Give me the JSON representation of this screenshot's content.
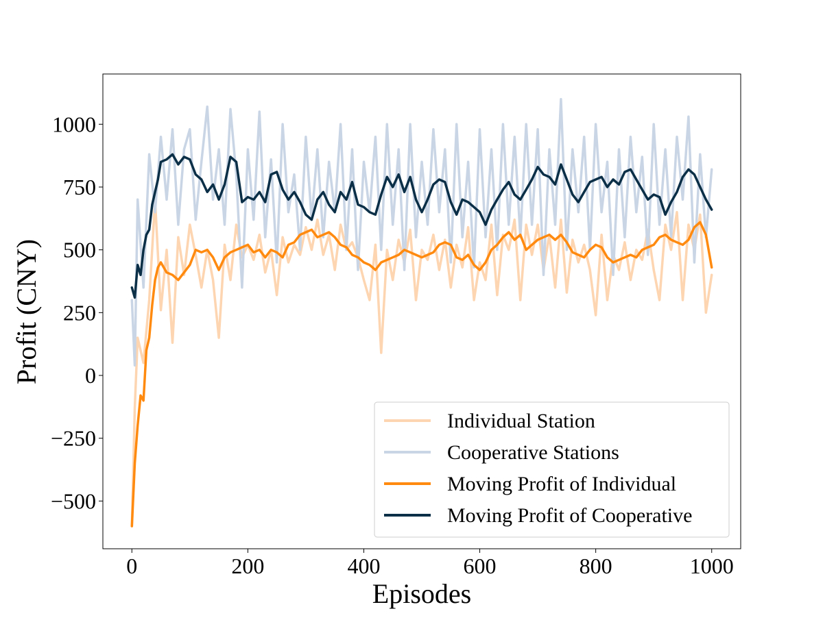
{
  "chart_data": {
    "type": "line",
    "title": "",
    "xlabel": "Episodes",
    "ylabel": "Profit (CNY)",
    "xlim": [
      -50,
      1050
    ],
    "ylim": [
      -690,
      1200
    ],
    "x_ticks": [
      0,
      200,
      400,
      600,
      800,
      1000
    ],
    "y_ticks": [
      -500,
      -250,
      0,
      250,
      500,
      750,
      1000
    ],
    "x_tick_labels": [
      "0",
      "200",
      "400",
      "600",
      "800",
      "1000"
    ],
    "y_tick_labels": [
      "−500",
      "−250",
      "0",
      "250",
      "500",
      "750",
      "1000"
    ],
    "grid": false,
    "legend_position": "bottom-right",
    "series": [
      {
        "name": "Individual Station",
        "color": "#fdd5b1",
        "x": [
          0,
          5,
          10,
          20,
          30,
          40,
          50,
          60,
          70,
          80,
          90,
          100,
          110,
          120,
          130,
          140,
          150,
          160,
          170,
          180,
          190,
          200,
          210,
          220,
          230,
          240,
          250,
          260,
          270,
          280,
          290,
          300,
          310,
          320,
          330,
          340,
          350,
          360,
          370,
          380,
          390,
          400,
          410,
          420,
          430,
          440,
          450,
          460,
          470,
          480,
          490,
          500,
          510,
          520,
          530,
          540,
          550,
          560,
          570,
          580,
          590,
          600,
          610,
          620,
          630,
          640,
          650,
          660,
          670,
          680,
          690,
          700,
          710,
          720,
          730,
          740,
          750,
          760,
          770,
          780,
          790,
          800,
          810,
          820,
          830,
          840,
          850,
          860,
          870,
          880,
          890,
          900,
          910,
          920,
          930,
          940,
          950,
          960,
          970,
          980,
          990,
          1000
        ],
        "values": [
          -600,
          -130,
          150,
          50,
          300,
          700,
          260,
          500,
          130,
          550,
          400,
          600,
          480,
          350,
          500,
          380,
          150,
          520,
          380,
          600,
          470,
          520,
          460,
          560,
          410,
          500,
          320,
          550,
          450,
          520,
          480,
          590,
          500,
          620,
          480,
          560,
          420,
          600,
          500,
          530,
          470,
          380,
          300,
          520,
          90,
          500,
          380,
          540,
          450,
          580,
          300,
          500,
          460,
          560,
          420,
          540,
          350,
          520,
          430,
          590,
          300,
          450,
          380,
          600,
          320,
          560,
          500,
          620,
          300,
          600,
          480,
          600,
          420,
          560,
          350,
          620,
          330,
          540,
          450,
          520,
          420,
          240,
          560,
          300,
          480,
          420,
          530,
          380,
          500,
          460,
          580,
          420,
          300,
          600,
          500,
          650,
          300,
          600,
          500,
          640,
          250,
          400
        ]
      },
      {
        "name": "Cooperative Stations",
        "color": "#c9d5e5",
        "x": [
          0,
          5,
          10,
          20,
          30,
          40,
          50,
          60,
          70,
          80,
          90,
          100,
          110,
          120,
          130,
          140,
          150,
          160,
          170,
          180,
          190,
          200,
          210,
          220,
          230,
          240,
          250,
          260,
          270,
          280,
          290,
          300,
          310,
          320,
          330,
          340,
          350,
          360,
          370,
          380,
          390,
          400,
          410,
          420,
          430,
          440,
          450,
          460,
          470,
          480,
          490,
          500,
          510,
          520,
          530,
          540,
          550,
          560,
          570,
          580,
          590,
          600,
          610,
          620,
          630,
          640,
          650,
          660,
          670,
          680,
          690,
          700,
          710,
          720,
          730,
          740,
          750,
          760,
          770,
          780,
          790,
          800,
          810,
          820,
          830,
          840,
          850,
          860,
          870,
          880,
          890,
          900,
          910,
          920,
          930,
          940,
          950,
          960,
          970,
          980,
          990,
          1000
        ],
        "values": [
          300,
          40,
          700,
          350,
          880,
          650,
          950,
          700,
          980,
          600,
          900,
          980,
          620,
          850,
          1070,
          700,
          900,
          600,
          1060,
          800,
          350,
          900,
          620,
          1050,
          550,
          860,
          450,
          1000,
          650,
          800,
          500,
          950,
          620,
          900,
          550,
          850,
          650,
          1000,
          500,
          900,
          420,
          850,
          650,
          950,
          500,
          1000,
          600,
          900,
          420,
          1000,
          550,
          850,
          600,
          980,
          650,
          900,
          450,
          1000,
          550,
          850,
          430,
          980,
          550,
          900,
          500,
          1000,
          600,
          950,
          550,
          1000,
          600,
          980,
          400,
          900,
          600,
          1100,
          500,
          900,
          650,
          950,
          500,
          1000,
          650,
          850,
          400,
          900,
          550,
          950,
          650,
          870,
          480,
          1000,
          600,
          900,
          550,
          950,
          700,
          1030,
          450,
          880,
          550,
          820
        ]
      },
      {
        "name": "Moving Profit of Individual",
        "color": "#ff8a0f",
        "x": [
          0,
          5,
          10,
          15,
          20,
          25,
          30,
          35,
          40,
          45,
          50,
          60,
          70,
          80,
          90,
          100,
          110,
          120,
          130,
          140,
          150,
          160,
          170,
          180,
          190,
          200,
          210,
          220,
          230,
          240,
          250,
          260,
          270,
          280,
          290,
          300,
          310,
          320,
          330,
          340,
          350,
          360,
          370,
          380,
          390,
          400,
          410,
          420,
          430,
          440,
          450,
          460,
          470,
          480,
          490,
          500,
          510,
          520,
          530,
          540,
          550,
          560,
          570,
          580,
          590,
          600,
          610,
          620,
          630,
          640,
          650,
          660,
          670,
          680,
          690,
          700,
          710,
          720,
          730,
          740,
          750,
          760,
          770,
          780,
          790,
          800,
          810,
          820,
          830,
          840,
          850,
          860,
          870,
          880,
          890,
          900,
          910,
          920,
          930,
          940,
          950,
          960,
          970,
          980,
          990,
          1000
        ],
        "values": [
          -600,
          -350,
          -200,
          -80,
          -100,
          100,
          150,
          280,
          380,
          430,
          450,
          410,
          400,
          380,
          410,
          440,
          500,
          490,
          500,
          470,
          420,
          470,
          490,
          500,
          510,
          520,
          490,
          500,
          470,
          500,
          490,
          470,
          520,
          530,
          560,
          570,
          580,
          550,
          560,
          570,
          550,
          520,
          510,
          480,
          470,
          450,
          440,
          420,
          450,
          460,
          470,
          480,
          500,
          490,
          480,
          470,
          480,
          490,
          520,
          530,
          520,
          470,
          460,
          480,
          440,
          420,
          450,
          500,
          520,
          550,
          570,
          540,
          560,
          500,
          520,
          540,
          550,
          560,
          540,
          560,
          530,
          490,
          480,
          470,
          500,
          520,
          510,
          470,
          450,
          460,
          470,
          480,
          470,
          500,
          510,
          520,
          550,
          560,
          540,
          530,
          520,
          540,
          590,
          610,
          560,
          430
        ]
      },
      {
        "name": "Moving Profit of Cooperative",
        "color": "#0b2f47",
        "x": [
          0,
          5,
          10,
          15,
          20,
          25,
          30,
          35,
          40,
          45,
          50,
          60,
          70,
          80,
          90,
          100,
          110,
          120,
          130,
          140,
          150,
          160,
          170,
          180,
          190,
          200,
          210,
          220,
          230,
          240,
          250,
          260,
          270,
          280,
          290,
          300,
          310,
          320,
          330,
          340,
          350,
          360,
          370,
          380,
          390,
          400,
          410,
          420,
          430,
          440,
          450,
          460,
          470,
          480,
          490,
          500,
          510,
          520,
          530,
          540,
          550,
          560,
          570,
          580,
          590,
          600,
          610,
          620,
          630,
          640,
          650,
          660,
          670,
          680,
          690,
          700,
          710,
          720,
          730,
          740,
          750,
          760,
          770,
          780,
          790,
          800,
          810,
          820,
          830,
          840,
          850,
          860,
          870,
          880,
          890,
          900,
          910,
          920,
          930,
          940,
          950,
          960,
          970,
          980,
          990,
          1000
        ],
        "values": [
          350,
          310,
          440,
          400,
          500,
          560,
          580,
          680,
          730,
          780,
          850,
          860,
          880,
          840,
          870,
          860,
          800,
          780,
          730,
          760,
          700,
          760,
          870,
          850,
          690,
          710,
          700,
          730,
          690,
          800,
          810,
          740,
          700,
          730,
          690,
          640,
          620,
          700,
          730,
          680,
          650,
          730,
          700,
          770,
          680,
          670,
          650,
          640,
          720,
          790,
          750,
          800,
          730,
          790,
          700,
          650,
          700,
          760,
          780,
          770,
          690,
          640,
          700,
          690,
          670,
          650,
          600,
          660,
          700,
          740,
          770,
          720,
          700,
          740,
          780,
          830,
          800,
          790,
          760,
          840,
          780,
          720,
          690,
          730,
          770,
          780,
          790,
          750,
          780,
          760,
          810,
          820,
          780,
          740,
          700,
          720,
          710,
          640,
          690,
          730,
          790,
          820,
          800,
          750,
          700,
          660
        ]
      }
    ]
  }
}
